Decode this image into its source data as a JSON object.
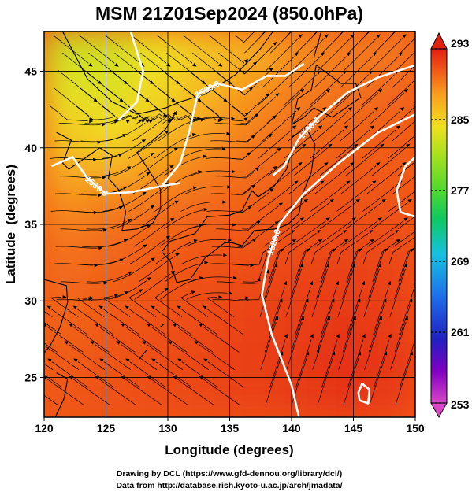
{
  "chart_data": {
    "type": "heatmap",
    "title": "MSM 21Z01Sep2024 (850.0hPa)",
    "xlabel": "Longitude (degrees)",
    "ylabel": "Latitude  (degrees)",
    "xlim": [
      120,
      150
    ],
    "ylim": [
      22.4,
      47.6
    ],
    "x_ticks": [
      120,
      125,
      130,
      135,
      140,
      145,
      150
    ],
    "y_ticks": [
      25,
      30,
      35,
      40,
      45
    ],
    "grid": true,
    "colorbar": {
      "min": 253,
      "max": 293,
      "ticks": [
        253,
        261,
        269,
        277,
        285,
        293
      ],
      "colors": [
        "#d946c8",
        "#8000c0",
        "#2020c0",
        "#1e6ee8",
        "#18c0e0",
        "#10c860",
        "#50d830",
        "#a8e020",
        "#f0e020",
        "#f8a020",
        "#f05818",
        "#e02010"
      ]
    },
    "temperature_field": [
      [
        289.5,
        289.8,
        290.1,
        290.4,
        290.8,
        291.2,
        291.6,
        291.2
      ],
      [
        289.2,
        289.6,
        290.0,
        290.5,
        290.9,
        291.3,
        291.8,
        291.4
      ],
      [
        288.8,
        289.3,
        289.8,
        290.2,
        290.8,
        291.1,
        291.5,
        291.2
      ],
      [
        288.5,
        289.0,
        289.4,
        289.9,
        290.3,
        290.8,
        291.0,
        290.8
      ],
      [
        288.0,
        288.5,
        289.0,
        289.3,
        289.6,
        290.0,
        290.4,
        290.2
      ],
      [
        286.8,
        287.5,
        288.1,
        288.5,
        289.0,
        289.4,
        289.8,
        289.6
      ],
      [
        285.0,
        284.8,
        286.0,
        287.4,
        288.3,
        288.8,
        289.3,
        289.2
      ],
      [
        283.2,
        282.4,
        283.8,
        285.8,
        287.4,
        288.2,
        288.8,
        289.0
      ],
      [
        281.5,
        281.2,
        282.6,
        284.4,
        286.2,
        287.5,
        288.0,
        288.5
      ],
      [
        280.2,
        280.5,
        282.0,
        283.5,
        285.0,
        286.6,
        287.6,
        287.8
      ]
    ],
    "contours": [
      {
        "label": "1530.0",
        "points": [
          [
            138.5,
            38.2
          ],
          [
            139.4,
            38.8
          ],
          [
            140.6,
            40.6
          ],
          [
            142.2,
            42.0
          ],
          [
            144.5,
            43.6
          ],
          [
            147.0,
            44.6
          ],
          [
            150.0,
            45.4
          ]
        ]
      },
      {
        "label": "1520.0",
        "points": [
          [
            150.0,
            42.2
          ],
          [
            147.0,
            41.0
          ],
          [
            143.8,
            39.0
          ],
          [
            141.0,
            37.0
          ],
          [
            139.0,
            35.0
          ],
          [
            138.1,
            32.7
          ],
          [
            137.6,
            30.4
          ],
          [
            138.4,
            27.8
          ],
          [
            140.0,
            24.5
          ],
          [
            140.6,
            22.4
          ]
        ]
      },
      {
        "label": "1530.0",
        "points": [
          [
            120.6,
            38.8
          ],
          [
            122.3,
            39.4
          ],
          [
            123.5,
            38.0
          ],
          [
            125.0,
            37.0
          ],
          [
            127.0,
            37.1
          ],
          [
            129.5,
            37.5
          ],
          [
            131.0,
            37.7
          ]
        ]
      },
      {
        "label": "1530.0",
        "points": [
          [
            129.5,
            37.5
          ],
          [
            131.0,
            39.0
          ],
          [
            131.8,
            41.3
          ],
          [
            132.4,
            43.5
          ],
          [
            134.0,
            44.2
          ],
          [
            136.0,
            43.8
          ],
          [
            138.0,
            44.7
          ],
          [
            139.5,
            44.7
          ],
          [
            141.0,
            45.5
          ]
        ]
      },
      {
        "label": "",
        "points": [
          [
            127.0,
            47.6
          ],
          [
            128.0,
            45.0
          ],
          [
            127.5,
            43.0
          ],
          [
            126.0,
            41.8
          ]
        ]
      },
      {
        "label": "",
        "points": [
          [
            150.0,
            35.5
          ],
          [
            148.8,
            35.8
          ],
          [
            148.5,
            37.2
          ],
          [
            149.2,
            38.8
          ],
          [
            150.0,
            39.4
          ]
        ]
      },
      {
        "label": "",
        "points": [
          [
            145.5,
            23.5
          ],
          [
            146.2,
            23.3
          ],
          [
            146.3,
            24.2
          ],
          [
            145.7,
            24.6
          ],
          [
            145.4,
            24.0
          ],
          [
            145.5,
            23.5
          ]
        ]
      }
    ]
  },
  "footer": {
    "line1": "Drawing by DCL (https://www.gfd-dennou.org/library/dcl/)",
    "line2": "Data from http://database.rish.kyoto-u.ac.jp/arch/jmadata/"
  }
}
